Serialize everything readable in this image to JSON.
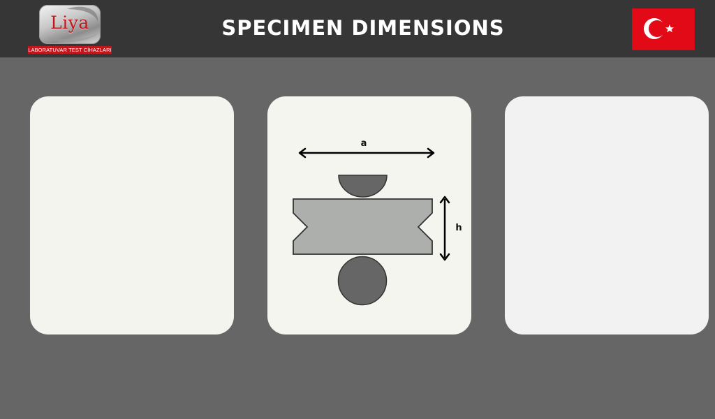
{
  "header": {
    "logo": {
      "brand": "Liya",
      "tagline": "LABORATUVAR TEST CİHAZLARI"
    },
    "title": "SPECIMEN DIMENSIONS",
    "language_flag": {
      "icon": "turkey-flag-icon",
      "colors": {
        "background": "#e30a17",
        "emblem": "#ffffff"
      }
    }
  },
  "cards": {
    "left": {
      "state": "empty"
    },
    "middle": {
      "diagram": {
        "width_label": "a",
        "height_label": "h"
      }
    },
    "right": {
      "state": "empty"
    }
  },
  "colors": {
    "page_background": "#666666",
    "header_background": "#363636",
    "card_background": "#f4f5ef",
    "specimen_fill": "#adafad",
    "support_fill": "#666666",
    "brand_red": "#c3161c"
  }
}
